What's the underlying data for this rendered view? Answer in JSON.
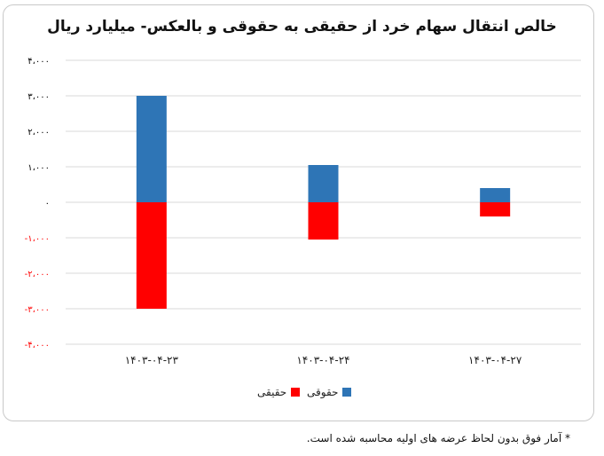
{
  "chart_data": {
    "type": "bar",
    "stacked": true,
    "title": "خالص انتقال سهام خرد از حقیقی به حقوقی و بالعکس- میلیارد ریال",
    "categories": [
      "۱۴۰۳-۰۴-۲۳",
      "۱۴۰۳-۰۴-۲۴",
      "۱۴۰۳-۰۴-۲۷"
    ],
    "series": [
      {
        "name": "حقوقی",
        "color": "#2e75b6",
        "values": [
          3000,
          1050,
          400
        ]
      },
      {
        "name": "حقیقی",
        "color": "#ff0000",
        "values": [
          -3000,
          -1050,
          -400
        ]
      }
    ],
    "ylim": [
      -4000,
      4000
    ],
    "yticks": [
      4000,
      3000,
      2000,
      1000,
      0,
      -1000,
      -2000,
      -3000,
      -4000
    ],
    "ytick_labels": [
      "۴،۰۰۰",
      "۳،۰۰۰",
      "۲،۰۰۰",
      "۱،۰۰۰",
      "۰",
      "-۱،۰۰۰",
      "-۲،۰۰۰",
      "-۳،۰۰۰",
      "-۴،۰۰۰"
    ],
    "positive_tick_color": "#000000",
    "negative_tick_color": "#ff0000",
    "grid": true,
    "legend_position": "bottom"
  },
  "footnote": "* آمار فوق بدون لحاظ عرضه های اولیه محاسبه شده است."
}
